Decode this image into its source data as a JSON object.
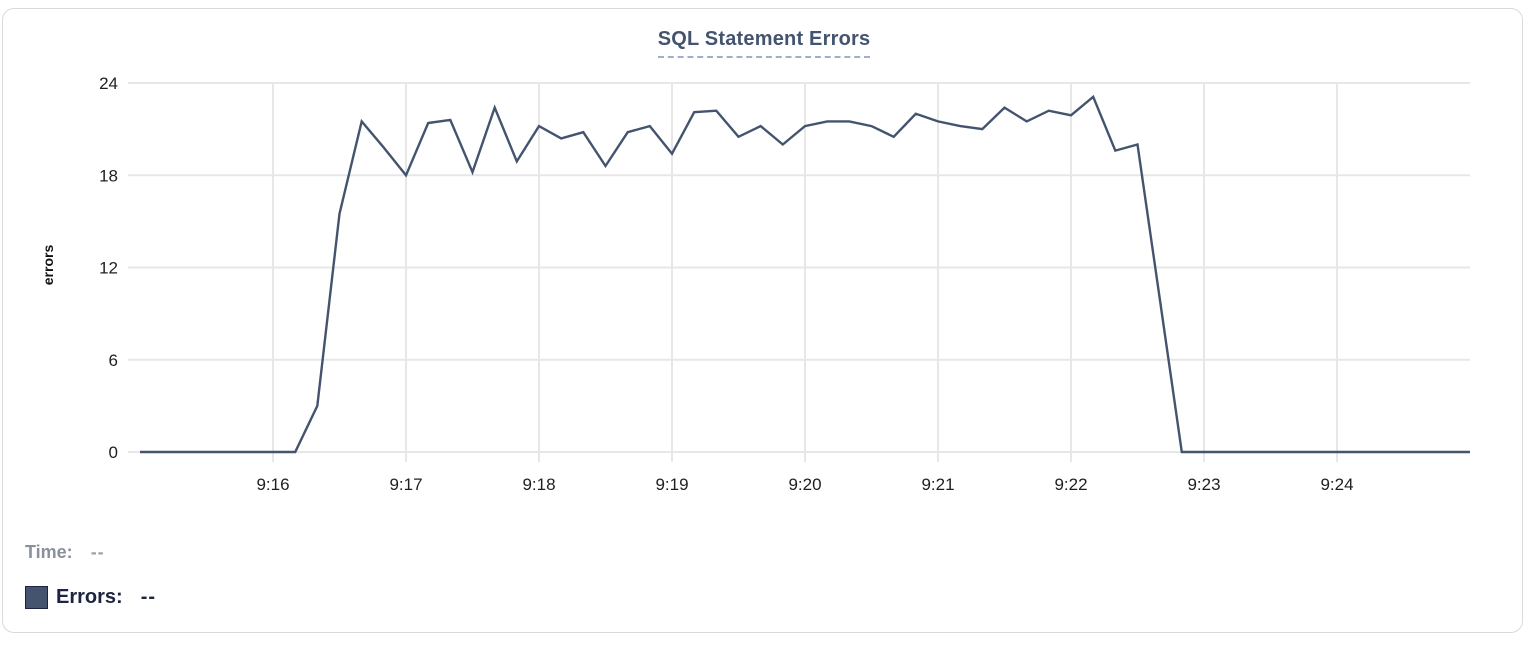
{
  "header": {
    "title": "SQL Statement Errors"
  },
  "footer": {
    "time_label": "Time:",
    "time_value": "--",
    "errors_label": "Errors:",
    "errors_value": "--"
  },
  "colors": {
    "line": "#44546E",
    "grid": "#E7E7E7",
    "tick_text": "#1F1F1F",
    "title_text": "#44546E",
    "legend_swatch": "#44546E"
  },
  "chart_data": {
    "type": "line",
    "title": "SQL Statement Errors",
    "xlabel": "",
    "ylabel": "errors",
    "x_range": [
      "9:15:00",
      "9:25:00"
    ],
    "ylim": [
      0,
      24
    ],
    "y_ticks": [
      0,
      6,
      12,
      18,
      24
    ],
    "x_ticks": [
      "9:16",
      "9:17",
      "9:18",
      "9:19",
      "9:20",
      "9:21",
      "9:22",
      "9:23",
      "9:24"
    ],
    "grid": true,
    "legend_position": "bottom-left",
    "line_color": "#44546E",
    "series": [
      {
        "name": "Errors",
        "points": [
          [
            "9:15:00",
            0
          ],
          [
            "9:15:10",
            0
          ],
          [
            "9:15:20",
            0
          ],
          [
            "9:15:30",
            0
          ],
          [
            "9:15:40",
            0
          ],
          [
            "9:15:50",
            0
          ],
          [
            "9:16:00",
            0
          ],
          [
            "9:16:10",
            0
          ],
          [
            "9:16:20",
            3
          ],
          [
            "9:16:30",
            15.5
          ],
          [
            "9:16:40",
            21.5
          ],
          [
            "9:16:50",
            19.8
          ],
          [
            "9:17:00",
            18
          ],
          [
            "9:17:10",
            21.4
          ],
          [
            "9:17:20",
            21.6
          ],
          [
            "9:17:30",
            18.2
          ],
          [
            "9:17:40",
            22.4
          ],
          [
            "9:17:50",
            18.9
          ],
          [
            "9:18:00",
            21.2
          ],
          [
            "9:18:10",
            20.4
          ],
          [
            "9:18:20",
            20.8
          ],
          [
            "9:18:30",
            18.6
          ],
          [
            "9:18:40",
            20.8
          ],
          [
            "9:18:50",
            21.2
          ],
          [
            "9:19:00",
            19.4
          ],
          [
            "9:19:10",
            22.1
          ],
          [
            "9:19:20",
            22.2
          ],
          [
            "9:19:30",
            20.5
          ],
          [
            "9:19:40",
            21.2
          ],
          [
            "9:19:50",
            20.0
          ],
          [
            "9:20:00",
            21.2
          ],
          [
            "9:20:10",
            21.5
          ],
          [
            "9:20:20",
            21.5
          ],
          [
            "9:20:30",
            21.2
          ],
          [
            "9:20:40",
            20.5
          ],
          [
            "9:20:50",
            22.0
          ],
          [
            "9:21:00",
            21.5
          ],
          [
            "9:21:10",
            21.2
          ],
          [
            "9:21:20",
            21.0
          ],
          [
            "9:21:30",
            22.4
          ],
          [
            "9:21:40",
            21.5
          ],
          [
            "9:21:50",
            22.2
          ],
          [
            "9:22:00",
            21.9
          ],
          [
            "9:22:10",
            23.1
          ],
          [
            "9:22:20",
            19.6
          ],
          [
            "9:22:30",
            20.0
          ],
          [
            "9:22:40",
            10
          ],
          [
            "9:22:50",
            0
          ],
          [
            "9:23:00",
            0
          ],
          [
            "9:23:10",
            0
          ],
          [
            "9:23:20",
            0
          ],
          [
            "9:23:30",
            0
          ],
          [
            "9:23:40",
            0
          ],
          [
            "9:23:50",
            0
          ],
          [
            "9:24:00",
            0
          ],
          [
            "9:24:10",
            0
          ],
          [
            "9:24:20",
            0
          ],
          [
            "9:24:30",
            0
          ],
          [
            "9:24:40",
            0
          ],
          [
            "9:24:50",
            0
          ],
          [
            "9:25:00",
            0
          ]
        ]
      }
    ]
  }
}
